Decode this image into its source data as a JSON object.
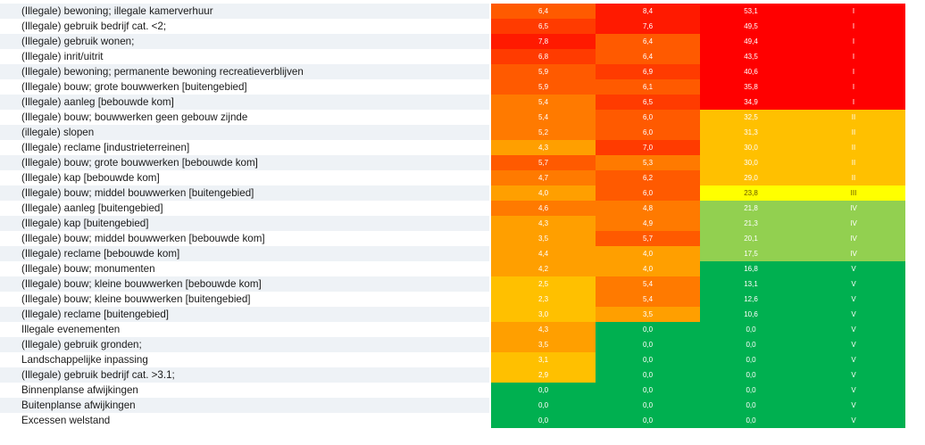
{
  "rows": [
    {
      "label": "(Illegale) bewoning; illegale kamerverhuur",
      "v1": "6,4",
      "v2": "8,4",
      "score": "53,1",
      "cls": "I"
    },
    {
      "label": "(Illegale) gebruik bedrijf cat. <2;",
      "v1": "6,5",
      "v2": "7,6",
      "score": "49,5",
      "cls": "I"
    },
    {
      "label": "(Illegale) gebruik wonen;",
      "v1": "7,8",
      "v2": "6,4",
      "score": "49,4",
      "cls": "I"
    },
    {
      "label": "(Illegale) inrit/uitrit",
      "v1": "6,8",
      "v2": "6,4",
      "score": "43,5",
      "cls": "I"
    },
    {
      "label": "(Illegale) bewoning; permanente bewoning recreatieverblijven",
      "v1": "5,9",
      "v2": "6,9",
      "score": "40,6",
      "cls": "I"
    },
    {
      "label": "(Illegale) bouw; grote bouwwerken [buitengebied]",
      "v1": "5,9",
      "v2": "6,1",
      "score": "35,8",
      "cls": "I"
    },
    {
      "label": "(Illegale) aanleg [bebouwde kom]",
      "v1": "5,4",
      "v2": "6,5",
      "score": "34,9",
      "cls": "I"
    },
    {
      "label": "(Illegale) bouw; bouwwerken geen gebouw zijnde",
      "v1": "5,4",
      "v2": "6,0",
      "score": "32,5",
      "cls": "II"
    },
    {
      "label": "(illegale) slopen",
      "v1": "5,2",
      "v2": "6,0",
      "score": "31,3",
      "cls": "II"
    },
    {
      "label": "(Illegale) reclame [industrieterreinen]",
      "v1": "4,3",
      "v2": "7,0",
      "score": "30,0",
      "cls": "II"
    },
    {
      "label": "(Illegale) bouw; grote bouwwerken [bebouwde kom]",
      "v1": "5,7",
      "v2": "5,3",
      "score": "30,0",
      "cls": "II"
    },
    {
      "label": "(Illegale) kap [bebouwde kom]",
      "v1": "4,7",
      "v2": "6,2",
      "score": "29,0",
      "cls": "II"
    },
    {
      "label": "(Illegale) bouw; middel bouwwerken [buitengebied]",
      "v1": "4,0",
      "v2": "6,0",
      "score": "23,8",
      "cls": "III"
    },
    {
      "label": "(Illegale) aanleg [buitengebied]",
      "v1": "4,6",
      "v2": "4,8",
      "score": "21,8",
      "cls": "IV"
    },
    {
      "label": "(Illegale) kap [buitengebied]",
      "v1": "4,3",
      "v2": "4,9",
      "score": "21,3",
      "cls": "IV"
    },
    {
      "label": "(Illegale) bouw; middel bouwwerken [bebouwde kom]",
      "v1": "3,5",
      "v2": "5,7",
      "score": "20,1",
      "cls": "IV"
    },
    {
      "label": "(Illegale) reclame [bebouwde kom]",
      "v1": "4,4",
      "v2": "4,0",
      "score": "17,5",
      "cls": "IV"
    },
    {
      "label": "(Illegale) bouw; monumenten",
      "v1": "4,2",
      "v2": "4,0",
      "score": "16,8",
      "cls": "V"
    },
    {
      "label": "(Illegale) bouw; kleine bouwwerken [bebouwde kom]",
      "v1": "2,5",
      "v2": "5,4",
      "score": "13,1",
      "cls": "V"
    },
    {
      "label": "(Illegale) bouw; kleine bouwwerken [buitengebied]",
      "v1": "2,3",
      "v2": "5,4",
      "score": "12,6",
      "cls": "V"
    },
    {
      "label": "(Illegale) reclame [buitengebied]",
      "v1": "3,0",
      "v2": "3,5",
      "score": "10,6",
      "cls": "V"
    },
    {
      "label": "Illegale evenementen",
      "v1": "4,3",
      "v2": "0,0",
      "score": "0,0",
      "cls": "V"
    },
    {
      "label": "(Illegale) gebruik gronden;",
      "v1": "3,5",
      "v2": "0,0",
      "score": "0,0",
      "cls": "V"
    },
    {
      "label": "Landschappelijke inpassing",
      "v1": "3,1",
      "v2": "0,0",
      "score": "0,0",
      "cls": "V"
    },
    {
      "label": "(Illegale) gebruik bedrijf cat. >3.1;",
      "v1": "2,9",
      "v2": "0,0",
      "score": "0,0",
      "cls": "V"
    },
    {
      "label": "Binnenplanse afwijkingen",
      "v1": "0,0",
      "v2": "0,0",
      "score": "0,0",
      "cls": "V"
    },
    {
      "label": "Buitenplanse afwijkingen",
      "v1": "0,0",
      "v2": "0,0",
      "score": "0,0",
      "cls": "V"
    },
    {
      "label": "Excessen welstand",
      "v1": "0,0",
      "v2": "0,0",
      "score": "0,0",
      "cls": "V"
    }
  ],
  "class_colors": {
    "I": "#ff0000",
    "II": "#ffc000",
    "III": "#ffff00",
    "IV": "#92d050",
    "V": "#00b050"
  }
}
